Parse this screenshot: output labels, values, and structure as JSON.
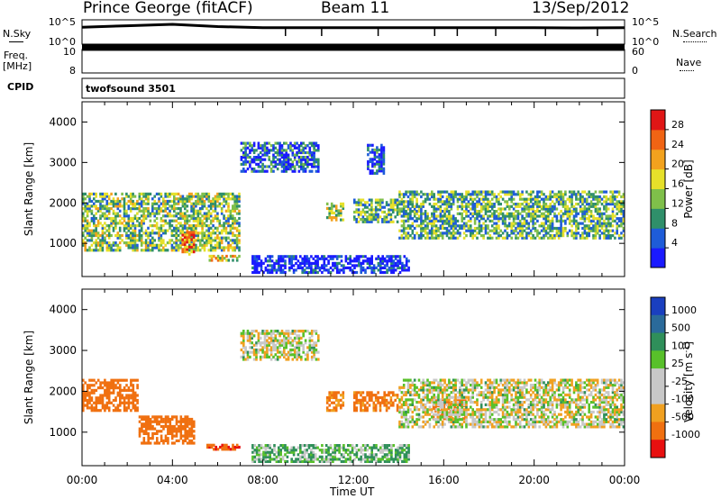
{
  "header": {
    "station": "Prince George (fitACF)",
    "beam": "Beam 11",
    "date": "13/Sep/2012"
  },
  "side_labels": {
    "nsky": "N.Sky",
    "nsearch": "N.Search",
    "freq": "Freq.",
    "freq_unit": "[MHz]",
    "nave": "Nave",
    "cpid": "CPID",
    "cpid_value": "twofsound 3501"
  },
  "chart_data": [
    {
      "type": "line",
      "name_panel": "noise",
      "left_ticks": [
        "10^5",
        "10^0"
      ],
      "right_ticks": [
        "10^5",
        "10^0"
      ],
      "y_scale": "log",
      "ylim": [
        1,
        100000
      ],
      "x": [
        0,
        2,
        4,
        5,
        6,
        8,
        10,
        12,
        14,
        16,
        18,
        20,
        22,
        24
      ],
      "series": [
        {
          "key": "N.Sky",
          "values": [
            3000,
            6000,
            12000,
            7000,
            4000,
            2500,
            2500,
            2300,
            2500,
            2500,
            2300,
            2500,
            2200,
            2500
          ]
        }
      ]
    },
    {
      "type": "line",
      "name_panel": "frequency_nave",
      "left_ticks": [
        "10",
        "8"
      ],
      "right_ticks": [
        "60",
        "0"
      ],
      "ylim": [
        8,
        10
      ],
      "x": [
        0,
        24
      ],
      "series": [
        {
          "key": "Freq.",
          "values": [
            10.2,
            10.2
          ]
        }
      ]
    },
    {
      "type": "heatmap",
      "name_panel": "power",
      "ylabel": "Slant Range [km]",
      "yticks": [
        "4000",
        "3000",
        "2000",
        "1000"
      ],
      "ylim": [
        180,
        4500
      ],
      "xlim": [
        0,
        24
      ],
      "colorbar_label": "Power [dB]",
      "colorbar_ticks": [
        "28",
        "24",
        "20",
        "16",
        "12",
        "8",
        "4"
      ],
      "colorbar_colors": [
        "#1a1aff",
        "#1e5cd8",
        "#2f8f6a",
        "#7fbf4a",
        "#e6e02a",
        "#f2a21e",
        "#f06414",
        "#e01616"
      ],
      "features": [
        {
          "x": [
            0.0,
            7.0
          ],
          "y": [
            800,
            2250
          ],
          "level": 16
        },
        {
          "x": [
            4.4,
            5.0
          ],
          "y": [
            700,
            1300
          ],
          "level": 26
        },
        {
          "x": [
            5.6,
            7.0
          ],
          "y": [
            550,
            700
          ],
          "level": 20
        },
        {
          "x": [
            7.0,
            10.5
          ],
          "y": [
            2750,
            3500
          ],
          "level": 8
        },
        {
          "x": [
            10.8,
            11.6
          ],
          "y": [
            1550,
            2000
          ],
          "level": 18
        },
        {
          "x": [
            12.0,
            14.0
          ],
          "y": [
            1500,
            2100
          ],
          "level": 14
        },
        {
          "x": [
            12.6,
            13.4
          ],
          "y": [
            2700,
            3450
          ],
          "level": 8
        },
        {
          "x": [
            14.0,
            24.0
          ],
          "y": [
            1100,
            2300
          ],
          "level": 14
        },
        {
          "x": [
            7.5,
            14.5
          ],
          "y": [
            250,
            700
          ],
          "level": 4
        }
      ]
    },
    {
      "type": "heatmap",
      "name_panel": "velocity",
      "ylabel": "Slant Range [km]",
      "yticks": [
        "4000",
        "3000",
        "2000",
        "1000"
      ],
      "ylim": [
        180,
        4500
      ],
      "xlim": [
        0,
        24
      ],
      "xlabel": "Time UT",
      "xticks": [
        "00:00",
        "04:00",
        "08:00",
        "12:00",
        "16:00",
        "20:00",
        "00:00"
      ],
      "colorbar_label": "Velocity [m s",
      "colorbar_label_sup": "-1",
      "colorbar_label_end": "]",
      "colorbar_ticks": [
        "1000",
        "500",
        "100",
        "25",
        "-25",
        "-100",
        "-500",
        "-1000"
      ],
      "colorbar_colors": [
        "#1a3fbf",
        "#2a6a9a",
        "#2f8f5a",
        "#58c02a",
        "#c8c8c8",
        "#c8c8c8",
        "#f0a020",
        "#f07010",
        "#e81010"
      ],
      "features": [
        {
          "x": [
            0.0,
            2.5
          ],
          "y": [
            1500,
            2300
          ],
          "level": -200
        },
        {
          "x": [
            2.5,
            5.0
          ],
          "y": [
            700,
            1400
          ],
          "level": -300
        },
        {
          "x": [
            5.5,
            7.0
          ],
          "y": [
            550,
            700
          ],
          "level": -500
        },
        {
          "x": [
            7.0,
            10.5
          ],
          "y": [
            2750,
            3500
          ],
          "level": 0
        },
        {
          "x": [
            10.8,
            11.6
          ],
          "y": [
            1500,
            2000
          ],
          "level": -100
        },
        {
          "x": [
            12.0,
            14.0
          ],
          "y": [
            1500,
            2000
          ],
          "level": -150
        },
        {
          "x": [
            15.5,
            17.0
          ],
          "y": [
            1300,
            1800
          ],
          "level": -300
        },
        {
          "x": [
            14.0,
            24.0
          ],
          "y": [
            1100,
            2300
          ],
          "level": 0
        },
        {
          "x": [
            7.5,
            14.5
          ],
          "y": [
            250,
            700
          ],
          "level": 60
        }
      ]
    }
  ]
}
